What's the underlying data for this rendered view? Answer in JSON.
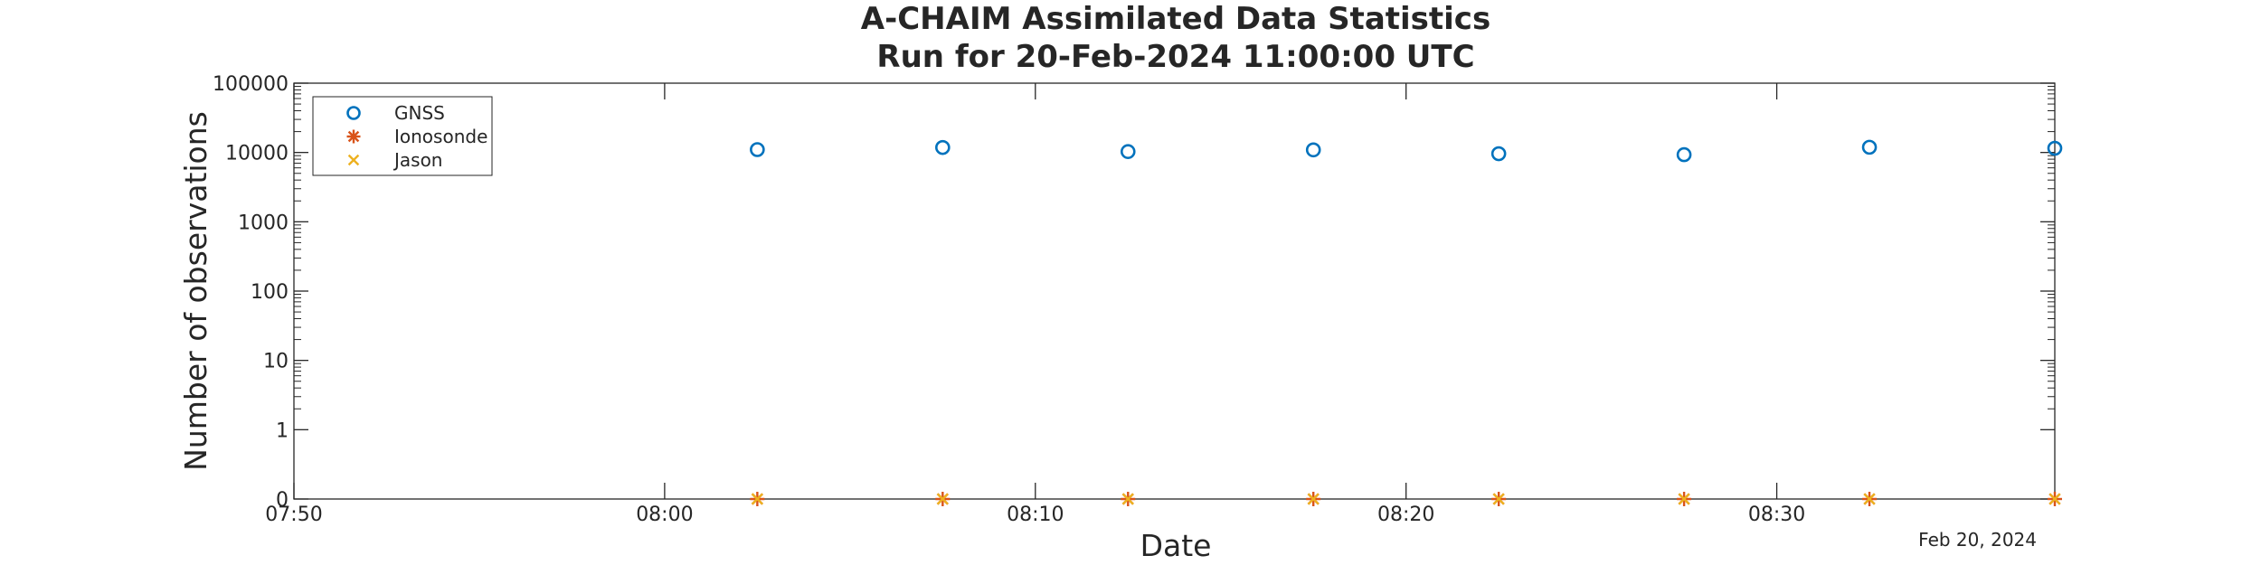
{
  "chart_data": {
    "type": "scatter",
    "title": [
      "A-CHAIM Assimilated Data Statistics",
      "Run for 20-Feb-2024 11:00:00 UTC"
    ],
    "xlabel": "Date",
    "ylabel": "Number of observations",
    "x_date_label": "Feb 20, 2024",
    "x_ticks": [
      "07:50",
      "08:00",
      "08:10",
      "08:20",
      "08:30"
    ],
    "xlim": [
      "07:50",
      "08:37.5"
    ],
    "y_scale": "log",
    "y_ticks": [
      "0",
      "1",
      "10",
      "100",
      "1000",
      "10000",
      "100000"
    ],
    "ylim": [
      0,
      100000
    ],
    "legend_position": "top-left",
    "grid": false,
    "x": [
      "08:02.5",
      "08:07.5",
      "08:12.5",
      "08:17.5",
      "08:22.5",
      "08:27.5",
      "08:32.5",
      "08:37.5"
    ],
    "series": [
      {
        "name": "GNSS",
        "marker": "circle",
        "color": "#0072BD",
        "values": [
          11000,
          11800,
          10300,
          10900,
          9600,
          9300,
          11900,
          11500
        ]
      },
      {
        "name": "Ionosonde",
        "marker": "asterisk",
        "color": "#D95319",
        "values": [
          0,
          0,
          0,
          0,
          0,
          0,
          0,
          0
        ]
      },
      {
        "name": "Jason",
        "marker": "x",
        "color": "#EDB120",
        "values": [
          0,
          0,
          0,
          0,
          0,
          0,
          0,
          0
        ]
      }
    ]
  }
}
